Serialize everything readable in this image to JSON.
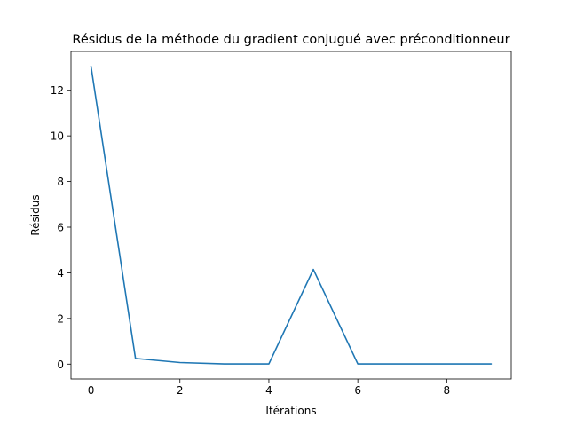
{
  "chart_data": {
    "type": "line",
    "title": "Résidus de la méthode du gradient conjugué avec préconditionneur",
    "xlabel": "Itérations",
    "ylabel": "Résidus",
    "x": [
      0,
      1,
      2,
      3,
      4,
      5,
      6,
      7,
      8,
      9
    ],
    "series": [
      {
        "values": [
          13.05,
          0.25,
          0.07,
          0.01,
          0.01,
          4.15,
          0.01,
          0.01,
          0.01,
          0.01
        ],
        "color": "#1f77b4"
      }
    ],
    "xlim": [
      -0.45,
      9.45
    ],
    "ylim": [
      -0.65,
      13.7
    ],
    "xticks": [
      0,
      2,
      4,
      6,
      8
    ],
    "yticks": [
      0,
      2,
      4,
      6,
      8,
      10,
      12
    ],
    "xtick_labels": [
      "0",
      "2",
      "4",
      "6",
      "8"
    ],
    "ytick_labels": [
      "0",
      "2",
      "4",
      "6",
      "8",
      "10",
      "12"
    ],
    "grid": false,
    "legend": false
  }
}
